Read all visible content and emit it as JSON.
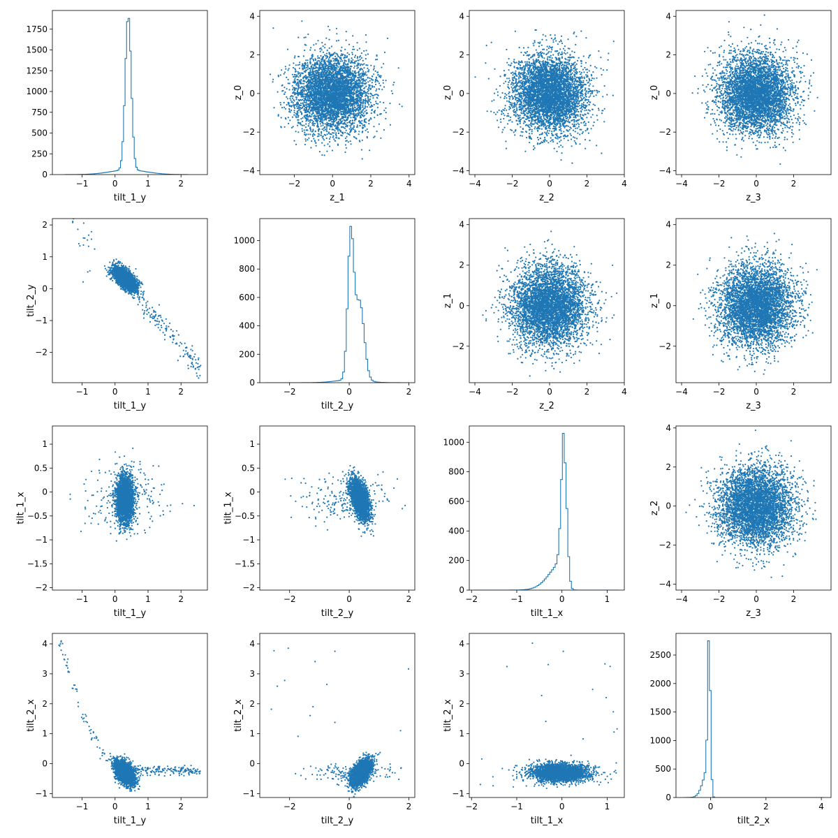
{
  "figure": {
    "background": "#ffffff",
    "series_color": "#1f77b4"
  },
  "chart_data": [
    {
      "id": "p00",
      "type": "histogram",
      "xlabel": "tilt_1_y",
      "ylabel": "",
      "xlim": [
        -1.9,
        2.8
      ],
      "ylim": [
        0,
        1975
      ],
      "xticks": [
        -1,
        0,
        1,
        2
      ],
      "yticks": [
        0,
        250,
        500,
        750,
        1000,
        1250,
        1500,
        1750
      ],
      "hist": {
        "peak": 0.4,
        "sigma": 0.09,
        "peakValue": 1880,
        "tail": 0.55,
        "tailWeight": 0.03,
        "min": -1.5,
        "max": 2.2,
        "bins": 80
      },
      "grid": false
    },
    {
      "id": "p01",
      "type": "scatter",
      "xlabel": "z_1",
      "ylabel": "z_0",
      "xlim": [
        -3.8,
        4.3
      ],
      "ylim": [
        -4.2,
        4.3
      ],
      "xticks": [
        -2,
        0,
        2,
        4
      ],
      "yticks": [
        -4,
        -2,
        0,
        2,
        4
      ],
      "scatter": {
        "kind": "gauss",
        "n": 4500,
        "seed": 11,
        "sx": 1,
        "sy": 1,
        "clip": [
          -3.6,
          4.1,
          -3.9,
          4.1
        ]
      },
      "grid": false
    },
    {
      "id": "p02",
      "type": "scatter",
      "xlabel": "z_2",
      "ylabel": "z_0",
      "xlim": [
        -4.3,
        4.0
      ],
      "ylim": [
        -4.2,
        4.3
      ],
      "xticks": [
        -4,
        -2,
        0,
        2,
        4
      ],
      "yticks": [
        -4,
        -2,
        0,
        2,
        4
      ],
      "scatter": {
        "kind": "gauss",
        "n": 4500,
        "seed": 12,
        "sx": 1,
        "sy": 1,
        "clip": [
          -4.1,
          3.8,
          -3.9,
          4.1
        ]
      },
      "grid": false
    },
    {
      "id": "p03",
      "type": "scatter",
      "xlabel": "z_3",
      "ylabel": "z_0",
      "xlim": [
        -4.3,
        4.0
      ],
      "ylim": [
        -4.2,
        4.3
      ],
      "xticks": [
        -4,
        -2,
        0,
        2
      ],
      "yticks": [
        -4,
        -2,
        0,
        2,
        4
      ],
      "scatter": {
        "kind": "gauss",
        "n": 4500,
        "seed": 13,
        "sx": 1,
        "sy": 1,
        "clip": [
          -3.9,
          3.6,
          -3.9,
          4.1
        ]
      },
      "grid": false
    },
    {
      "id": "p10",
      "type": "scatter",
      "xlabel": "tilt_1_y",
      "ylabel": "tilt_2_y",
      "xlim": [
        -1.9,
        2.8
      ],
      "ylim": [
        -2.95,
        2.2
      ],
      "xticks": [
        -1,
        0,
        1,
        2
      ],
      "yticks": [
        -2,
        -1,
        0,
        1,
        2
      ],
      "scatter": {
        "kind": "corr",
        "n": 2600,
        "seed": 21,
        "cx": 0.3,
        "cy": 0.3,
        "sx": 0.18,
        "sy": 0.18,
        "rho": -0.6,
        "tailN": 160,
        "tailSlope": -1.25,
        "tailX": [
          0.5,
          2.6
        ],
        "tailNoise": 0.18,
        "outN": 25,
        "outX": [
          -1.7,
          -0.6
        ],
        "outSlope": -1.1
      },
      "grid": false
    },
    {
      "id": "p11",
      "type": "histogram",
      "xlabel": "tilt_2_y",
      "ylabel": "",
      "xlim": [
        -3.0,
        2.2
      ],
      "ylim": [
        0,
        1155
      ],
      "xticks": [
        -2,
        0,
        2
      ],
      "yticks": [
        0,
        200,
        400,
        600,
        800,
        1000
      ],
      "hist": {
        "peak": 0.05,
        "sigma": 0.1,
        "peakValue": 1100,
        "shoulder": 0.35,
        "shoulderSigma": 0.15,
        "shoulderWeight": 0.55,
        "tail": 0.5,
        "tailWeight": 0.02,
        "min": -2.8,
        "max": 2.0,
        "bins": 80
      },
      "grid": false
    },
    {
      "id": "p12",
      "type": "scatter",
      "xlabel": "z_2",
      "ylabel": "z_1",
      "xlim": [
        -4.3,
        4.0
      ],
      "ylim": [
        -3.8,
        4.3
      ],
      "xticks": [
        -4,
        -2,
        0,
        2,
        4
      ],
      "yticks": [
        -2,
        0,
        2,
        4
      ],
      "scatter": {
        "kind": "gauss",
        "n": 4500,
        "seed": 22,
        "sx": 1,
        "sy": 1,
        "clip": [
          -4.1,
          3.8,
          -3.5,
          4.0
        ]
      },
      "grid": false
    },
    {
      "id": "p13",
      "type": "scatter",
      "xlabel": "z_3",
      "ylabel": "z_1",
      "xlim": [
        -4.3,
        4.0
      ],
      "ylim": [
        -3.8,
        4.3
      ],
      "xticks": [
        -4,
        -2,
        0,
        2
      ],
      "yticks": [
        -2,
        0,
        2,
        4
      ],
      "scatter": {
        "kind": "gauss",
        "n": 4500,
        "seed": 23,
        "sx": 1,
        "sy": 1,
        "clip": [
          -3.9,
          3.6,
          -3.5,
          4.0
        ]
      },
      "grid": false
    },
    {
      "id": "p20",
      "type": "scatter",
      "xlabel": "tilt_1_y",
      "ylabel": "tilt_1_x",
      "xlim": [
        -1.9,
        2.8
      ],
      "ylim": [
        -2.05,
        1.38
      ],
      "xticks": [
        -1,
        0,
        1,
        2
      ],
      "yticks": [
        -2.0,
        -1.5,
        -1.0,
        -0.5,
        0.0,
        0.5,
        1.0
      ],
      "scatter": {
        "kind": "corr",
        "n": 2600,
        "seed": 31,
        "cx": 0.3,
        "cy": -0.15,
        "sx": 0.13,
        "sy": 0.25,
        "rho": 0,
        "wideN": 220,
        "wideSx": 0.7,
        "wideSy": 0.35,
        "wideClip": [
          -1.7,
          2.7,
          -1.9,
          1.2
        ]
      },
      "grid": false
    },
    {
      "id": "p21",
      "type": "scatter",
      "xlabel": "tilt_2_y",
      "ylabel": "tilt_1_x",
      "xlim": [
        -3.0,
        2.2
      ],
      "ylim": [
        -2.05,
        1.38
      ],
      "xticks": [
        -2,
        0,
        2
      ],
      "yticks": [
        -2.0,
        -1.5,
        -1.0,
        -0.5,
        0.0,
        0.5,
        1.0
      ],
      "scatter": {
        "kind": "corr",
        "n": 2600,
        "seed": 32,
        "cx": 0.35,
        "cy": -0.15,
        "sx": 0.16,
        "sy": 0.22,
        "rho": -0.55,
        "wideN": 200,
        "wideSx": 0.8,
        "wideSy": 0.25,
        "wideShift": -0.7,
        "wideClip": [
          -2.8,
          2.0,
          -1.9,
          1.25
        ]
      },
      "grid": false
    },
    {
      "id": "p22",
      "type": "histogram",
      "xlabel": "tilt_1_x",
      "ylabel": "",
      "xlim": [
        -2.05,
        1.38
      ],
      "ylim": [
        0,
        1110
      ],
      "xticks": [
        -2,
        -1,
        0,
        1
      ],
      "yticks": [
        0,
        200,
        400,
        600,
        800,
        1000
      ],
      "hist": {
        "peak": 0.05,
        "sigma": 0.06,
        "peakValue": 1060,
        "leftTail": 0.3,
        "leftTailWeight": 0.22,
        "min": -1.95,
        "max": 1.25,
        "bins": 80
      },
      "grid": false
    },
    {
      "id": "p23",
      "type": "scatter",
      "xlabel": "z_3",
      "ylabel": "z_2",
      "xlim": [
        -4.3,
        4.0
      ],
      "ylim": [
        -4.3,
        4.1
      ],
      "xticks": [
        -4,
        -2,
        0,
        2
      ],
      "yticks": [
        -4,
        -2,
        0,
        2,
        4
      ],
      "scatter": {
        "kind": "gauss",
        "n": 4500,
        "seed": 33,
        "sx": 1,
        "sy": 1,
        "clip": [
          -3.9,
          3.6,
          -4.0,
          3.9
        ]
      },
      "grid": false
    },
    {
      "id": "p30",
      "type": "scatter",
      "xlabel": "tilt_1_y",
      "ylabel": "tilt_2_x",
      "xlim": [
        -1.9,
        2.8
      ],
      "ylim": [
        -1.13,
        4.35
      ],
      "xticks": [
        -1,
        0,
        1,
        2
      ],
      "yticks": [
        -1,
        0,
        1,
        2,
        3,
        4
      ],
      "scatter": {
        "kind": "corr",
        "n": 2600,
        "seed": 41,
        "cx": 0.3,
        "cy": -0.3,
        "sx": 0.15,
        "sy": 0.2,
        "rho": -0.5,
        "tailN": 170,
        "tailSlope": -0.02,
        "tailX": [
          0.5,
          2.6
        ],
        "tailBase": -0.2,
        "tailNoise": 0.08,
        "outN": 60,
        "outX": [
          -1.7,
          -0.3
        ],
        "outCurve": true
      },
      "grid": false
    },
    {
      "id": "p31",
      "type": "scatter",
      "xlabel": "tilt_2_y",
      "ylabel": "tilt_2_x",
      "xlim": [
        -3.0,
        2.2
      ],
      "ylim": [
        -1.13,
        4.35
      ],
      "xticks": [
        -2,
        0,
        2
      ],
      "yticks": [
        -1,
        0,
        1,
        2,
        3,
        4
      ],
      "scatter": {
        "kind": "corr",
        "n": 2600,
        "seed": 42,
        "cx": 0.4,
        "cy": -0.3,
        "sx": 0.17,
        "sy": 0.22,
        "rho": 0.55,
        "wideN": 170,
        "wideSx": 0.7,
        "wideSy": 0.15,
        "wideShift": -0.6,
        "wideClip": [
          -2.8,
          2.0,
          -1.0,
          4.2
        ],
        "sparseN": 14,
        "sparseClip": [
          -2.8,
          2.0,
          0.8,
          4.2
        ]
      },
      "grid": false
    },
    {
      "id": "p32",
      "type": "scatter",
      "xlabel": "tilt_1_x",
      "ylabel": "tilt_2_x",
      "xlim": [
        -2.05,
        1.38
      ],
      "ylim": [
        -1.13,
        4.35
      ],
      "xticks": [
        -2,
        -1,
        0,
        1
      ],
      "yticks": [
        -1,
        0,
        1,
        2,
        3,
        4
      ],
      "scatter": {
        "kind": "corr",
        "n": 2600,
        "seed": 43,
        "cx": -0.05,
        "cy": -0.3,
        "sx": 0.3,
        "sy": 0.15,
        "rho": 0,
        "wideN": 200,
        "wideSx": 0.55,
        "wideSy": 0.2,
        "wideClip": [
          -1.95,
          1.3,
          -1.0,
          4.2
        ],
        "sparseN": 14,
        "sparseClip": [
          -1.95,
          1.3,
          0.8,
          4.2
        ]
      },
      "grid": false
    },
    {
      "id": "p33",
      "type": "histogram",
      "xlabel": "tilt_2_x",
      "ylabel": "",
      "xlim": [
        -1.25,
        4.35
      ],
      "ylim": [
        0,
        2880
      ],
      "xticks": [
        0,
        2,
        4
      ],
      "yticks": [
        0,
        500,
        1000,
        1500,
        2000,
        2500
      ],
      "hist": {
        "peak": -0.05,
        "sigma": 0.05,
        "peakValue": 2750,
        "leftTail": 0.2,
        "leftTailWeight": 0.22,
        "min": -1.0,
        "max": 4.1,
        "bins": 80
      },
      "grid": false
    }
  ]
}
